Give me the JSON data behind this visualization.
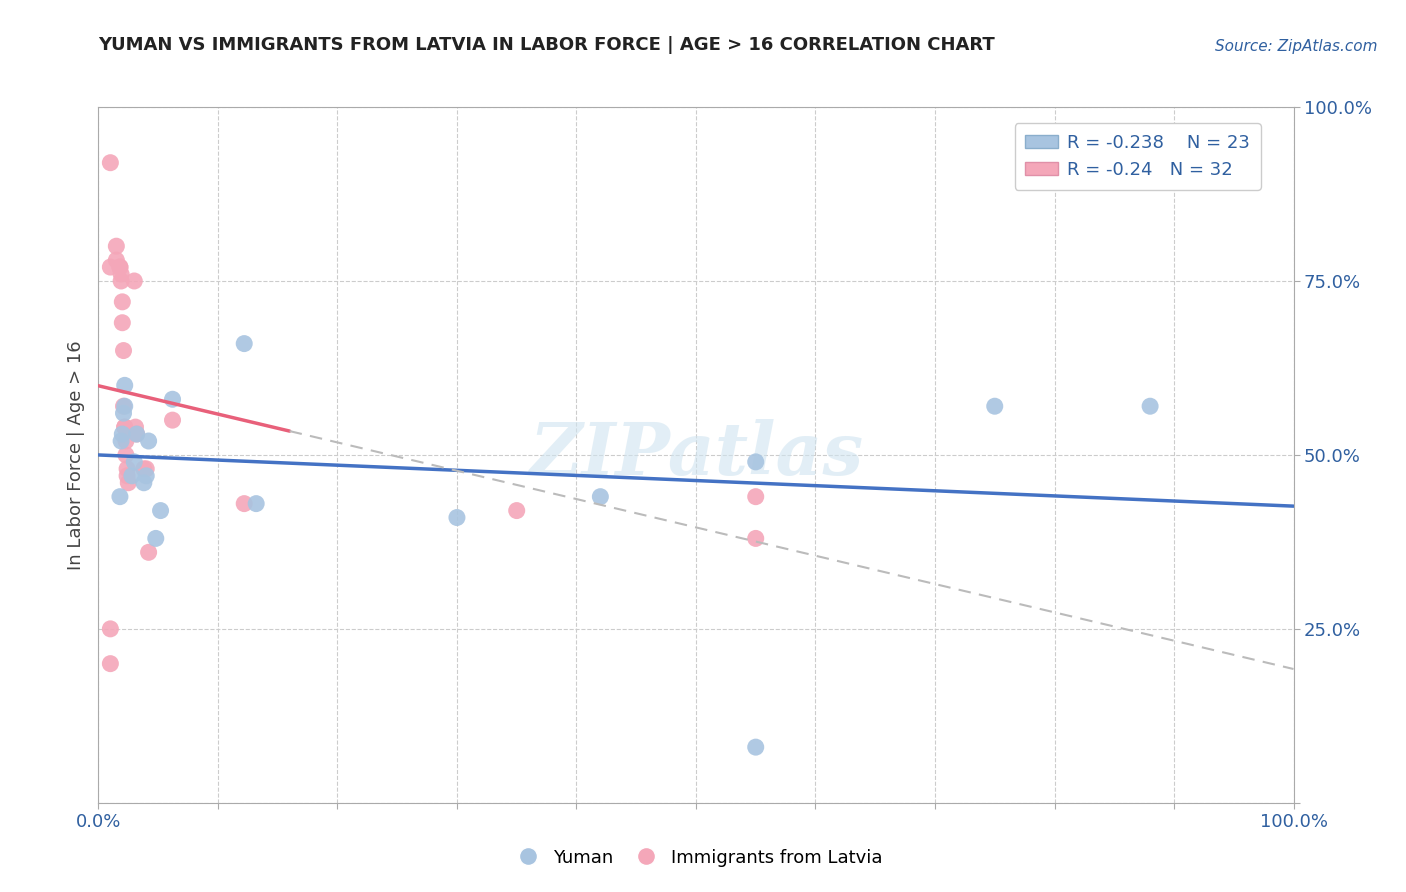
{
  "title": "YUMAN VS IMMIGRANTS FROM LATVIA IN LABOR FORCE | AGE > 16 CORRELATION CHART",
  "source_text": "Source: ZipAtlas.com",
  "ylabel": "In Labor Force | Age > 16",
  "xlim": [
    0,
    1
  ],
  "ylim": [
    0,
    1
  ],
  "xticks": [
    0.0,
    0.1,
    0.2,
    0.3,
    0.4,
    0.5,
    0.6,
    0.7,
    0.8,
    0.9,
    1.0
  ],
  "yticks": [
    0.0,
    0.25,
    0.5,
    0.75,
    1.0
  ],
  "xticklabels_show": {
    "0.0": "0.0%",
    "1.0": "100.0%"
  },
  "yticklabels_show": {
    "0.25": "25.0%",
    "0.5": "50.0%",
    "0.75": "75.0%",
    "1.0": "100.0%"
  },
  "yuman_color": "#a8c4e0",
  "latvia_color": "#f4a7b9",
  "yuman_line_color": "#4472c4",
  "latvia_line_color": "#e8607a",
  "yuman_R": -0.238,
  "yuman_N": 23,
  "latvia_R": -0.24,
  "latvia_N": 32,
  "legend_R_color": "#3060a0",
  "background_color": "#ffffff",
  "grid_color": "#cccccc",
  "yuman_scatter_x": [
    0.018,
    0.019,
    0.02,
    0.021,
    0.022,
    0.022,
    0.028,
    0.03,
    0.032,
    0.038,
    0.04,
    0.042,
    0.048,
    0.052,
    0.062,
    0.122,
    0.132,
    0.3,
    0.42,
    0.55,
    0.55,
    0.75,
    0.88
  ],
  "yuman_scatter_y": [
    0.44,
    0.52,
    0.53,
    0.56,
    0.57,
    0.6,
    0.47,
    0.49,
    0.53,
    0.46,
    0.47,
    0.52,
    0.38,
    0.42,
    0.58,
    0.66,
    0.43,
    0.41,
    0.44,
    0.49,
    0.08,
    0.57,
    0.57
  ],
  "latvia_scatter_x": [
    0.01,
    0.01,
    0.01,
    0.01,
    0.015,
    0.015,
    0.018,
    0.018,
    0.019,
    0.019,
    0.02,
    0.02,
    0.021,
    0.021,
    0.022,
    0.022,
    0.023,
    0.023,
    0.024,
    0.024,
    0.025,
    0.03,
    0.031,
    0.032,
    0.038,
    0.04,
    0.042,
    0.062,
    0.122,
    0.35,
    0.55,
    0.55
  ],
  "latvia_scatter_y": [
    0.92,
    0.25,
    0.2,
    0.77,
    0.8,
    0.78,
    0.77,
    0.77,
    0.76,
    0.75,
    0.72,
    0.69,
    0.65,
    0.57,
    0.54,
    0.54,
    0.52,
    0.5,
    0.48,
    0.47,
    0.46,
    0.75,
    0.54,
    0.53,
    0.48,
    0.48,
    0.36,
    0.55,
    0.43,
    0.42,
    0.44,
    0.38
  ],
  "latvia_line_solid_end": 0.16,
  "latvia_line_dashed_start": 0.16
}
